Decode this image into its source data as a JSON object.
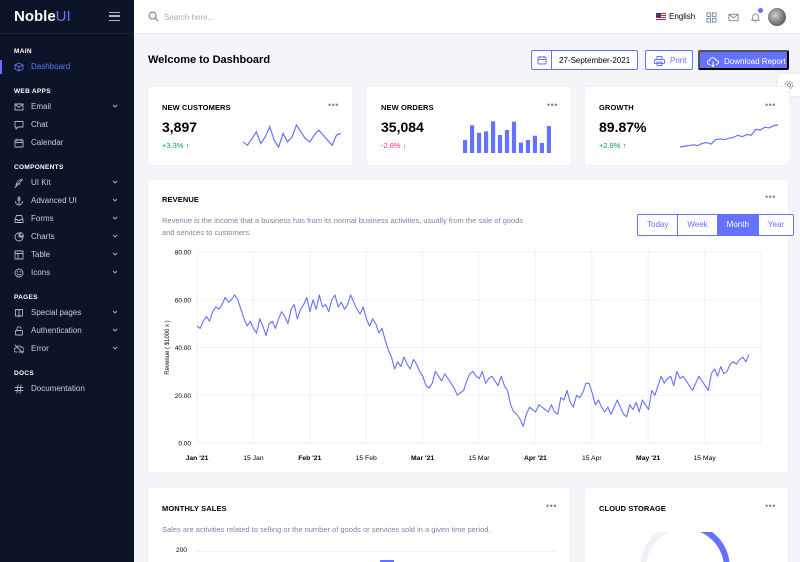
{
  "brand": {
    "prefix": "Noble",
    "suffix": "UI"
  },
  "sidebar": {
    "sections": [
      {
        "label": "MAIN",
        "items": [
          {
            "label": "Dashboard",
            "icon": "box-icon",
            "active": true,
            "chevron": false
          }
        ]
      },
      {
        "label": "WEB APPS",
        "items": [
          {
            "label": "Email",
            "icon": "mail-icon",
            "chevron": true
          },
          {
            "label": "Chat",
            "icon": "chat-icon",
            "chevron": false
          },
          {
            "label": "Calendar",
            "icon": "calendar-icon",
            "chevron": false
          }
        ]
      },
      {
        "label": "COMPONENTS",
        "items": [
          {
            "label": "UI Kit",
            "icon": "feather-icon",
            "chevron": true
          },
          {
            "label": "Advanced UI",
            "icon": "anchor-icon",
            "chevron": true
          },
          {
            "label": "Forms",
            "icon": "inbox-icon",
            "chevron": true
          },
          {
            "label": "Charts",
            "icon": "pie-chart-icon",
            "chevron": true
          },
          {
            "label": "Table",
            "icon": "layout-icon",
            "chevron": true
          },
          {
            "label": "Icons",
            "icon": "smile-icon",
            "chevron": true
          }
        ]
      },
      {
        "label": "PAGES",
        "items": [
          {
            "label": "Special pages",
            "icon": "book-icon",
            "chevron": true
          },
          {
            "label": "Authentication",
            "icon": "unlock-icon",
            "chevron": true
          },
          {
            "label": "Error",
            "icon": "cloud-off-icon",
            "chevron": true
          }
        ]
      },
      {
        "label": "DOCS",
        "items": [
          {
            "label": "Documentation",
            "icon": "hash-icon",
            "chevron": false
          }
        ]
      }
    ]
  },
  "header": {
    "search_placeholder": "Search here...",
    "language": "English"
  },
  "page": {
    "title": "Welcome to Dashboard",
    "date": "27-September-2021",
    "print_label": "Print",
    "download_label": "Download Report"
  },
  "kpis": [
    {
      "title": "NEW CUSTOMERS",
      "value": "3,897",
      "change": "+3.3%",
      "direction": "up",
      "spark": {
        "type": "line",
        "values": [
          40,
          36,
          44,
          52,
          38,
          46,
          58,
          42,
          34,
          50,
          40,
          46,
          60,
          52,
          44,
          40,
          48,
          54,
          48,
          42,
          36,
          48,
          50
        ]
      }
    },
    {
      "title": "NEW ORDERS",
      "value": "35,084",
      "change": "-2.8%",
      "direction": "down",
      "spark": {
        "type": "bar",
        "values": [
          36,
          77,
          56,
          60,
          88,
          50,
          64,
          87,
          29,
          36,
          48,
          28,
          75
        ]
      }
    },
    {
      "title": "GROWTH",
      "value": "89.87%",
      "change": "+2.8%",
      "direction": "up",
      "spark": {
        "type": "line",
        "values": [
          20,
          21,
          22,
          23,
          22,
          25,
          26,
          24,
          30,
          31,
          30,
          32,
          33,
          36,
          34,
          37,
          36,
          44,
          43,
          47,
          46,
          49,
          50
        ]
      }
    }
  ],
  "revenue": {
    "title": "REVENUE",
    "description_line1": "Revenue is the income that a business has from its normal business activities, usually from the sale of goods",
    "description_line2": "and services to customers.",
    "periods": [
      {
        "label": "Today",
        "selected": false
      },
      {
        "label": "Week",
        "selected": false
      },
      {
        "label": "Month",
        "selected": true
      },
      {
        "label": "Year",
        "selected": false
      }
    ]
  },
  "chart_data": {
    "type": "line",
    "ylabel": "Revenue ( $1000 x )",
    "xlabel": "",
    "ylim": [
      0,
      80
    ],
    "yticks": [
      "0.00",
      "20.00",
      "40.00",
      "60.00",
      "80.00"
    ],
    "xticks": [
      {
        "label": "Jan '21",
        "bold": true
      },
      {
        "label": "15 Jan",
        "bold": false
      },
      {
        "label": "Feb '21",
        "bold": true
      },
      {
        "label": "15 Feb",
        "bold": false
      },
      {
        "label": "Mar '21",
        "bold": true
      },
      {
        "label": "15 Mar",
        "bold": false
      },
      {
        "label": "Apr '21",
        "bold": true
      },
      {
        "label": "15 Apr",
        "bold": false
      },
      {
        "label": "May '21",
        "bold": true
      },
      {
        "label": "15 May",
        "bold": false
      }
    ],
    "series": [
      {
        "color": "#6571ff",
        "values": [
          49,
          48,
          51,
          53,
          51,
          55,
          57,
          56,
          58,
          61,
          59,
          60,
          62,
          60,
          56,
          52,
          49,
          51,
          48,
          46,
          52,
          49,
          45,
          50,
          51,
          48,
          52,
          55,
          53,
          50,
          56,
          58,
          52,
          56,
          58,
          61,
          55,
          60,
          56,
          62,
          57,
          58,
          55,
          60,
          62,
          57,
          59,
          56,
          58,
          62,
          59,
          56,
          54,
          57,
          52,
          49,
          52,
          50,
          46,
          48,
          43,
          39,
          36,
          31,
          34,
          32,
          36,
          33,
          31,
          35,
          33,
          30,
          28,
          24,
          23,
          25,
          30,
          28,
          26,
          29,
          27,
          25,
          23,
          20,
          21,
          22,
          26,
          29,
          30,
          28,
          27,
          30,
          25,
          27,
          28,
          26,
          24,
          28,
          24,
          22,
          16,
          13,
          12,
          10,
          7,
          12,
          15,
          14,
          13,
          16,
          15,
          14,
          13,
          16,
          13,
          12,
          19,
          18,
          22,
          17,
          15,
          20,
          19,
          21,
          25,
          25,
          21,
          16,
          18,
          15,
          13,
          15,
          12,
          15,
          18,
          15,
          12,
          11,
          16,
          14,
          17,
          13,
          18,
          16,
          14,
          22,
          20,
          24,
          28,
          25,
          27,
          28,
          24,
          30,
          27,
          28,
          26,
          24,
          22,
          25,
          28,
          26,
          24,
          22,
          29,
          31,
          28,
          32,
          29,
          30,
          33,
          34,
          33,
          35,
          36,
          34,
          37
        ]
      }
    ]
  },
  "monthly_sales": {
    "title": "MONTHLY SALES",
    "description": "Sales are activities related to selling or the number of goods or services sold in a given time period.",
    "first_tick": "200"
  },
  "cloud_storage": {
    "title": "CLOUD STORAGE"
  }
}
